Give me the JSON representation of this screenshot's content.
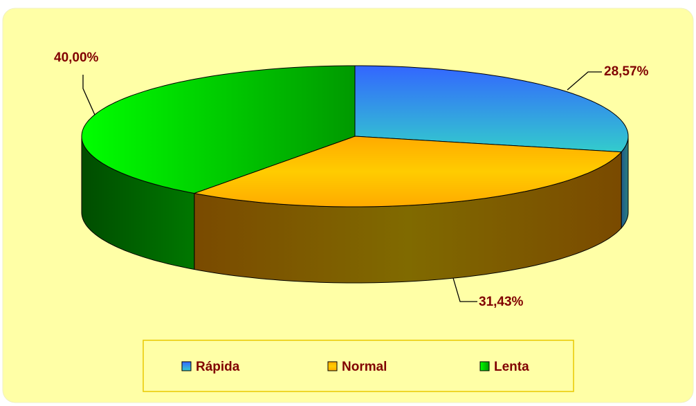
{
  "chart_data": {
    "type": "pie3d",
    "categories": [
      "Rápida",
      "Normal",
      "Lenta"
    ],
    "values": [
      28.57,
      31.43,
      40
    ],
    "value_labels": [
      "28,57%",
      "31,43%",
      "40,00%"
    ],
    "colors": [
      "#3399ff",
      "#ffaa00",
      "#22dd22"
    ],
    "legend": "bottom"
  }
}
